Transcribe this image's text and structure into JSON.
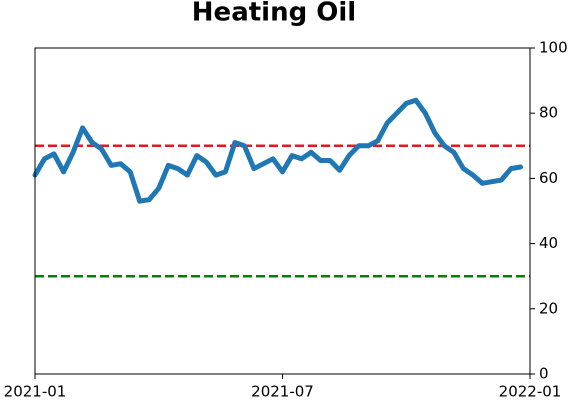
{
  "chart_data": {
    "type": "line",
    "title": "Heating Oil",
    "categories": [
      "2021-01",
      null,
      null,
      null,
      null,
      null,
      null,
      null,
      null,
      null,
      null,
      null,
      null,
      null,
      null,
      null,
      null,
      null,
      null,
      null,
      null,
      null,
      null,
      null,
      null,
      null,
      "2021-07",
      null,
      null,
      null,
      null,
      null,
      null,
      null,
      null,
      null,
      null,
      null,
      null,
      null,
      null,
      null,
      null,
      null,
      null,
      null,
      null,
      null,
      null,
      null,
      null,
      null,
      "2022-01"
    ],
    "series": [
      {
        "name": "Heating Oil",
        "color": "#1f77b4",
        "values": [
          61,
          66,
          67.5,
          62,
          68,
          75.5,
          71,
          69,
          64,
          64.5,
          62,
          53,
          53.5,
          57,
          64,
          63,
          61,
          67,
          65,
          61,
          62,
          71,
          70,
          63,
          64.5,
          66,
          62,
          67,
          66,
          68,
          65.5,
          65.5,
          62.5,
          67,
          70,
          70,
          71.5,
          77,
          80,
          83,
          84,
          80,
          74,
          70,
          68,
          63,
          61,
          58.5,
          59,
          59.5,
          63,
          63.5,
          null
        ]
      }
    ],
    "hlines": [
      {
        "value": 70,
        "color": "#e31a1c"
      },
      {
        "value": 30,
        "color": "#008000"
      }
    ],
    "ylim": [
      0,
      100
    ],
    "yticks": [
      0,
      20,
      40,
      60,
      80,
      100
    ],
    "yaxis_side": "right"
  }
}
